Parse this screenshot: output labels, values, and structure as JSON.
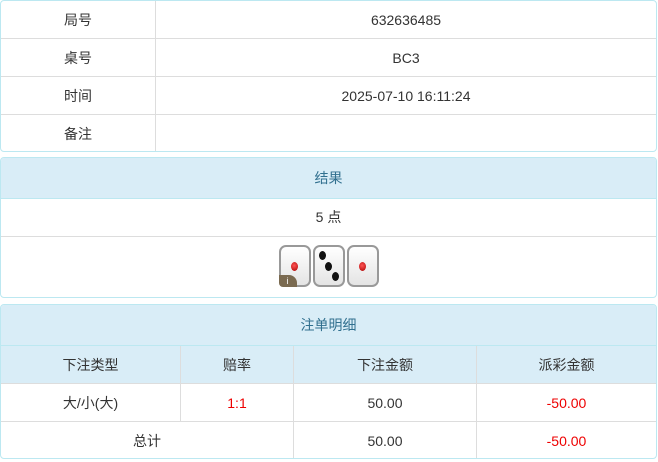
{
  "info": {
    "rows": [
      {
        "label": "局号",
        "value": "632636485"
      },
      {
        "label": "桌号",
        "value": "BC3"
      },
      {
        "label": "时间",
        "value": "2025-07-10 16:11:24"
      },
      {
        "label": "备注",
        "value": ""
      }
    ]
  },
  "result": {
    "title": "结果",
    "points": "5 点",
    "dice": [
      1,
      3,
      1
    ],
    "info_badge": "i"
  },
  "bets": {
    "title": "注单明细",
    "headers": [
      "下注类型",
      "赔率",
      "下注金额",
      "派彩金额"
    ],
    "rows": [
      {
        "type": "大/小(大)",
        "odds": "1:1",
        "amount": "50.00",
        "payout": "-50.00"
      }
    ],
    "total": {
      "label": "总计",
      "amount": "50.00",
      "payout": "-50.00"
    }
  },
  "colors": {
    "header_bg": "#d9edf7",
    "header_text": "#31708f",
    "negative": "#ee0000"
  }
}
